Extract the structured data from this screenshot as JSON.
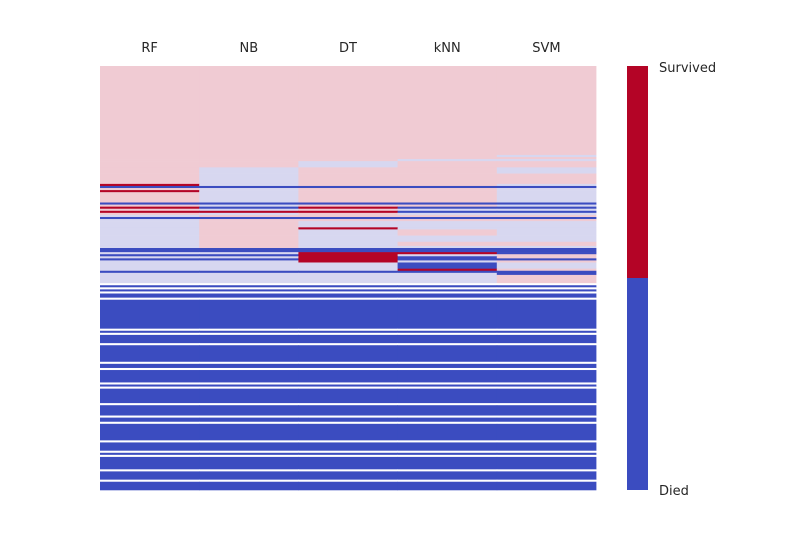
{
  "chart_data": {
    "type": "heatmap",
    "columns": [
      "RF",
      "NB",
      "DT",
      "kNN",
      "SVM"
    ],
    "colorbar": {
      "top_label": "Survived",
      "bottom_label": "Died",
      "colors": {
        "survived": "#b40426",
        "died": "#3b4cc0"
      }
    },
    "state_colors": {
      "S": "#b40426",
      "s": "#f0cbd3",
      "d": "#d7d7f0",
      "D": "#3b4cc0",
      "W": "#ffffff"
    },
    "segments": [
      {
        "weight": 86,
        "cells": [
          "s",
          "s",
          "s",
          "s",
          "s"
        ]
      },
      {
        "weight": 2,
        "cells": [
          "s",
          "s",
          "s",
          "s",
          "d"
        ]
      },
      {
        "weight": 2,
        "cells": [
          "s",
          "s",
          "s",
          "s",
          "s"
        ]
      },
      {
        "weight": 2,
        "cells": [
          "s",
          "s",
          "s",
          "d",
          "d"
        ]
      },
      {
        "weight": 6,
        "cells": [
          "s",
          "s",
          "d",
          "s",
          "s"
        ]
      },
      {
        "weight": 6,
        "cells": [
          "s",
          "d",
          "s",
          "s",
          "d"
        ]
      },
      {
        "weight": 10,
        "cells": [
          "s",
          "d",
          "s",
          "s",
          "s"
        ]
      },
      {
        "weight": 2,
        "cells": [
          "S",
          "d",
          "s",
          "s",
          "d"
        ]
      },
      {
        "weight": 2,
        "cells": [
          "D",
          "D",
          "D",
          "D",
          "D"
        ]
      },
      {
        "weight": 2,
        "cells": [
          "s",
          "d",
          "s",
          "s",
          "d"
        ]
      },
      {
        "weight": 2,
        "cells": [
          "S",
          "d",
          "s",
          "s",
          "d"
        ]
      },
      {
        "weight": 10,
        "cells": [
          "s",
          "d",
          "s",
          "s",
          "d"
        ]
      },
      {
        "weight": 2,
        "cells": [
          "D",
          "D",
          "D",
          "D",
          "D"
        ]
      },
      {
        "weight": 2,
        "cells": [
          "s",
          "d",
          "s",
          "s",
          "d"
        ]
      },
      {
        "weight": 2,
        "cells": [
          "S",
          "D",
          "S",
          "D",
          "D"
        ]
      },
      {
        "weight": 2,
        "cells": [
          "s",
          "d",
          "s",
          "d",
          "d"
        ]
      },
      {
        "weight": 2,
        "cells": [
          "S",
          "S",
          "S",
          "D",
          "D"
        ]
      },
      {
        "weight": 2,
        "cells": [
          "s",
          "d",
          "s",
          "d",
          "d"
        ]
      },
      {
        "weight": 2,
        "cells": [
          "d",
          "s",
          "s",
          "s",
          "s"
        ]
      },
      {
        "weight": 2,
        "cells": [
          "D",
          "D",
          "D",
          "D",
          "D"
        ]
      },
      {
        "weight": 2,
        "cells": [
          "d",
          "s",
          "s",
          "s",
          "s"
        ]
      },
      {
        "weight": 6,
        "cells": [
          "d",
          "s",
          "d",
          "d",
          "d"
        ]
      },
      {
        "weight": 2,
        "cells": [
          "d",
          "s",
          "S",
          "d",
          "d"
        ]
      },
      {
        "weight": 6,
        "cells": [
          "d",
          "s",
          "d",
          "s",
          "d"
        ]
      },
      {
        "weight": 6,
        "cells": [
          "d",
          "s",
          "d",
          "d",
          "d"
        ]
      },
      {
        "weight": 4,
        "cells": [
          "d",
          "s",
          "d",
          "s",
          "s"
        ]
      },
      {
        "weight": 2,
        "cells": [
          "d",
          "s",
          "d",
          "d",
          "d"
        ]
      },
      {
        "weight": 4,
        "cells": [
          "D",
          "D",
          "D",
          "D",
          "D"
        ]
      },
      {
        "weight": 2,
        "cells": [
          "d",
          "d",
          "S",
          "S",
          "D"
        ]
      },
      {
        "weight": 2,
        "cells": [
          "D",
          "D",
          "S",
          "d",
          "s"
        ]
      },
      {
        "weight": 2,
        "cells": [
          "d",
          "d",
          "S",
          "D",
          "s"
        ]
      },
      {
        "weight": 2,
        "cells": [
          "D",
          "D",
          "S",
          "D",
          "D"
        ]
      },
      {
        "weight": 2,
        "cells": [
          "d",
          "d",
          "S",
          "d",
          "s"
        ]
      },
      {
        "weight": 6,
        "cells": [
          "d",
          "d",
          "d",
          "D",
          "d"
        ]
      },
      {
        "weight": 2,
        "cells": [
          "d",
          "d",
          "d",
          "S",
          "s"
        ]
      },
      {
        "weight": 2,
        "cells": [
          "D",
          "D",
          "D",
          "D",
          "D"
        ]
      },
      {
        "weight": 2,
        "cells": [
          "d",
          "d",
          "d",
          "d",
          "D"
        ]
      },
      {
        "weight": 2,
        "cells": [
          "d",
          "d",
          "d",
          "d",
          "s"
        ]
      },
      {
        "weight": 6,
        "cells": [
          "d",
          "d",
          "d",
          "d",
          "s"
        ]
      },
      {
        "weight": 2,
        "cells": [
          "W",
          "W",
          "W",
          "W",
          "W"
        ]
      },
      {
        "weight": 2,
        "cells": [
          "D",
          "D",
          "D",
          "D",
          "D"
        ]
      },
      {
        "weight": 2,
        "cells": [
          "W",
          "W",
          "W",
          "W",
          "W"
        ]
      },
      {
        "weight": 2,
        "cells": [
          "D",
          "D",
          "D",
          "D",
          "D"
        ]
      },
      {
        "weight": 2,
        "cells": [
          "W",
          "W",
          "W",
          "W",
          "W"
        ]
      },
      {
        "weight": 4,
        "cells": [
          "D",
          "D",
          "D",
          "D",
          "D"
        ]
      },
      {
        "weight": 2,
        "cells": [
          "W",
          "W",
          "W",
          "W",
          "W"
        ]
      },
      {
        "weight": 28,
        "cells": [
          "D",
          "D",
          "D",
          "D",
          "D"
        ]
      },
      {
        "weight": 2,
        "cells": [
          "W",
          "W",
          "W",
          "W",
          "W"
        ]
      },
      {
        "weight": 2,
        "cells": [
          "D",
          "D",
          "D",
          "D",
          "D"
        ]
      },
      {
        "weight": 2,
        "cells": [
          "W",
          "W",
          "W",
          "W",
          "W"
        ]
      },
      {
        "weight": 8,
        "cells": [
          "D",
          "D",
          "D",
          "D",
          "D"
        ]
      },
      {
        "weight": 2,
        "cells": [
          "W",
          "W",
          "W",
          "W",
          "W"
        ]
      },
      {
        "weight": 16,
        "cells": [
          "D",
          "D",
          "D",
          "D",
          "D"
        ]
      },
      {
        "weight": 2,
        "cells": [
          "W",
          "W",
          "W",
          "W",
          "W"
        ]
      },
      {
        "weight": 4,
        "cells": [
          "D",
          "D",
          "D",
          "D",
          "D"
        ]
      },
      {
        "weight": 2,
        "cells": [
          "W",
          "W",
          "W",
          "W",
          "W"
        ]
      },
      {
        "weight": 12,
        "cells": [
          "D",
          "D",
          "D",
          "D",
          "D"
        ]
      },
      {
        "weight": 2,
        "cells": [
          "W",
          "W",
          "W",
          "W",
          "W"
        ]
      },
      {
        "weight": 2,
        "cells": [
          "D",
          "D",
          "D",
          "D",
          "D"
        ]
      },
      {
        "weight": 2,
        "cells": [
          "W",
          "W",
          "W",
          "W",
          "W"
        ]
      },
      {
        "weight": 14,
        "cells": [
          "D",
          "D",
          "D",
          "D",
          "D"
        ]
      },
      {
        "weight": 2,
        "cells": [
          "W",
          "W",
          "W",
          "W",
          "W"
        ]
      },
      {
        "weight": 10,
        "cells": [
          "D",
          "D",
          "D",
          "D",
          "D"
        ]
      },
      {
        "weight": 2,
        "cells": [
          "W",
          "W",
          "W",
          "W",
          "W"
        ]
      },
      {
        "weight": 4,
        "cells": [
          "D",
          "D",
          "D",
          "D",
          "D"
        ]
      },
      {
        "weight": 2,
        "cells": [
          "W",
          "W",
          "W",
          "W",
          "W"
        ]
      },
      {
        "weight": 16,
        "cells": [
          "D",
          "D",
          "D",
          "D",
          "D"
        ]
      },
      {
        "weight": 2,
        "cells": [
          "W",
          "W",
          "W",
          "W",
          "W"
        ]
      },
      {
        "weight": 8,
        "cells": [
          "D",
          "D",
          "D",
          "D",
          "D"
        ]
      },
      {
        "weight": 2,
        "cells": [
          "W",
          "W",
          "W",
          "W",
          "W"
        ]
      },
      {
        "weight": 2,
        "cells": [
          "D",
          "D",
          "D",
          "D",
          "D"
        ]
      },
      {
        "weight": 2,
        "cells": [
          "W",
          "W",
          "W",
          "W",
          "W"
        ]
      },
      {
        "weight": 12,
        "cells": [
          "D",
          "D",
          "D",
          "D",
          "D"
        ]
      },
      {
        "weight": 2,
        "cells": [
          "W",
          "W",
          "W",
          "W",
          "W"
        ]
      },
      {
        "weight": 8,
        "cells": [
          "D",
          "D",
          "D",
          "D",
          "D"
        ]
      },
      {
        "weight": 2,
        "cells": [
          "W",
          "W",
          "W",
          "W",
          "W"
        ]
      },
      {
        "weight": 8,
        "cells": [
          "D",
          "D",
          "D",
          "D",
          "D"
        ]
      }
    ]
  }
}
